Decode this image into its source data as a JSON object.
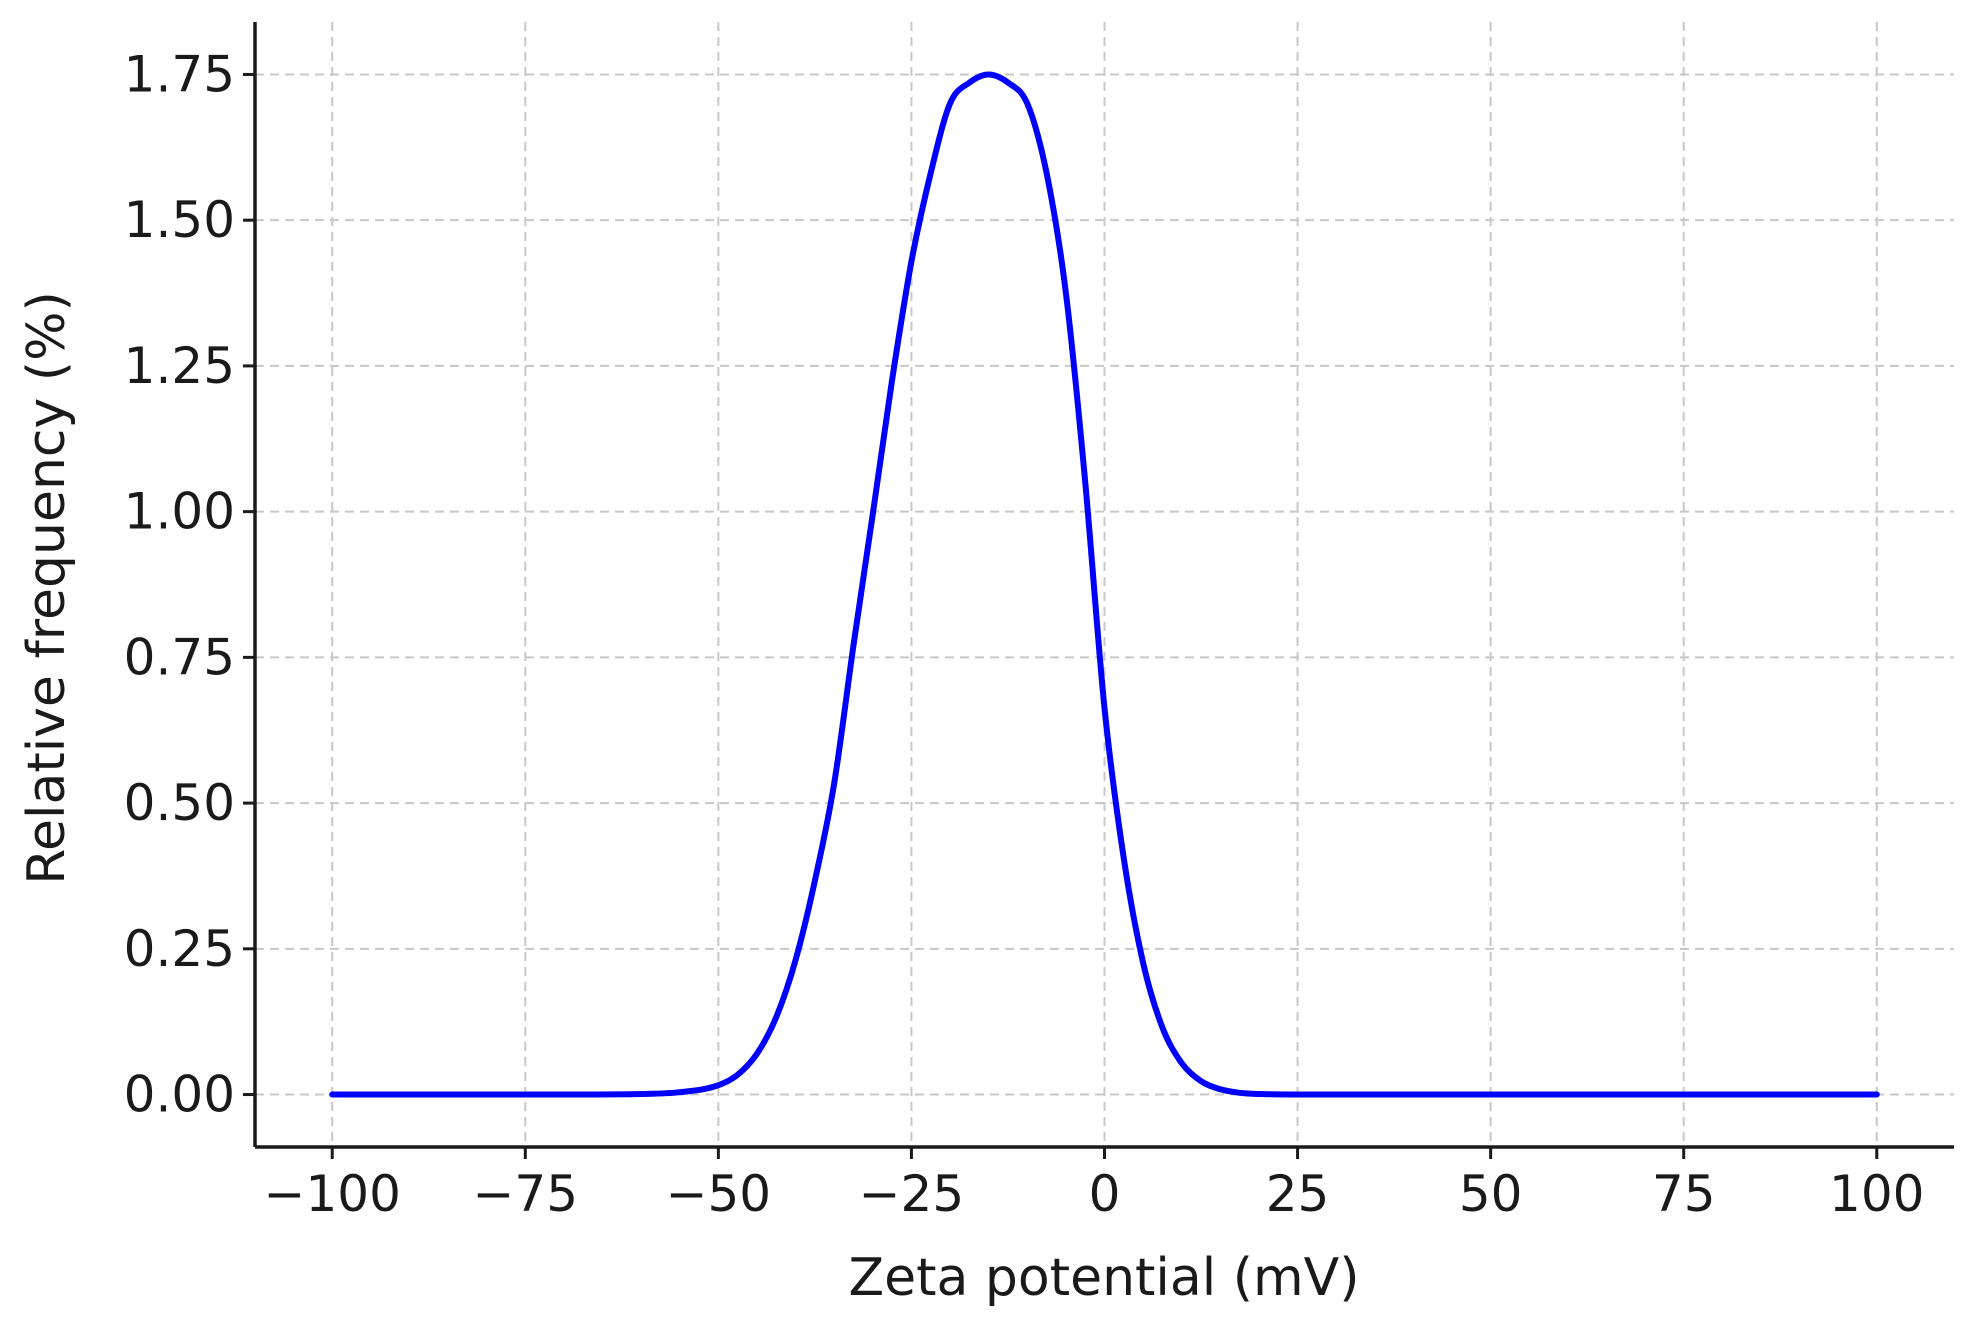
{
  "chart_data": {
    "type": "line",
    "title": "",
    "xlabel": "Zeta potential (mV)",
    "ylabel": "Relative frequency (%)",
    "xlim": [
      -110,
      110
    ],
    "ylim": [
      -0.09,
      1.84
    ],
    "x_ticks": [
      -100,
      -75,
      -50,
      -25,
      0,
      25,
      50,
      75,
      100
    ],
    "x_tick_labels": [
      "−100",
      "−75",
      "−50",
      "−25",
      "0",
      "25",
      "50",
      "75",
      "100"
    ],
    "y_ticks": [
      0,
      0.25,
      0.5,
      0.75,
      1.0,
      1.25,
      1.5,
      1.75
    ],
    "y_tick_labels": [
      "0.00",
      "0.25",
      "0.50",
      "0.75",
      "1.00",
      "1.25",
      "1.50",
      "1.75"
    ],
    "grid": true,
    "series": [
      {
        "color": "#0000ff",
        "x": [
          -100,
          -90,
          -80,
          -70,
          -60,
          -55,
          -50,
          -47.5,
          -45,
          -42.5,
          -40,
          -37.5,
          -35,
          -32.5,
          -30,
          -27.5,
          -25,
          -22.5,
          -20,
          -17.5,
          -15,
          -12.5,
          -10,
          -7.5,
          -5,
          -2.5,
          0,
          2.5,
          5,
          7.5,
          10,
          12.5,
          15,
          17.5,
          20,
          25,
          30,
          40,
          50,
          60,
          70,
          80,
          90,
          100
        ],
        "y": [
          0,
          0,
          0,
          0,
          0.001,
          0.004,
          0.016,
          0.034,
          0.07,
          0.133,
          0.231,
          0.367,
          0.534,
          0.771,
          0.996,
          1.226,
          1.429,
          1.581,
          1.7,
          1.736,
          1.75,
          1.736,
          1.7,
          1.581,
          1.375,
          1.051,
          0.663,
          0.405,
          0.226,
          0.115,
          0.054,
          0.023,
          0.009,
          0.003,
          0.001,
          0,
          0,
          0,
          0,
          0,
          0,
          0,
          0,
          0
        ]
      }
    ]
  }
}
